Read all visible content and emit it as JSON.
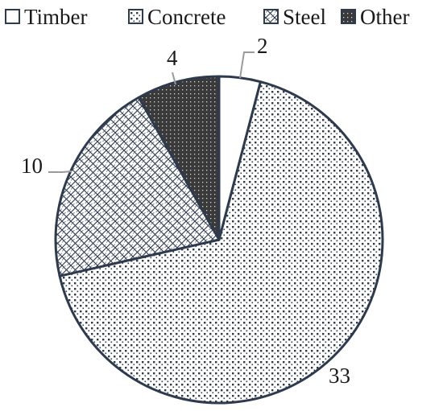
{
  "chart_data": {
    "type": "pie",
    "categories": [
      "Timber",
      "Concrete",
      "Steel",
      "Other"
    ],
    "values": [
      2,
      33,
      10,
      4
    ],
    "data_labels": [
      "2",
      "33",
      "10",
      "4"
    ],
    "patterns": [
      "plain",
      "dotted-grid",
      "diagonal-crosshatch",
      "dark-dotted"
    ],
    "colors": {
      "outline": "#2e3a4d",
      "pattern_ink": "#2e3a4d",
      "other_fill": "#3a3a3a",
      "leader": "#9a9a9a"
    },
    "legend_position": "top",
    "start_angle_degrees": 0,
    "direction": "clockwise"
  }
}
